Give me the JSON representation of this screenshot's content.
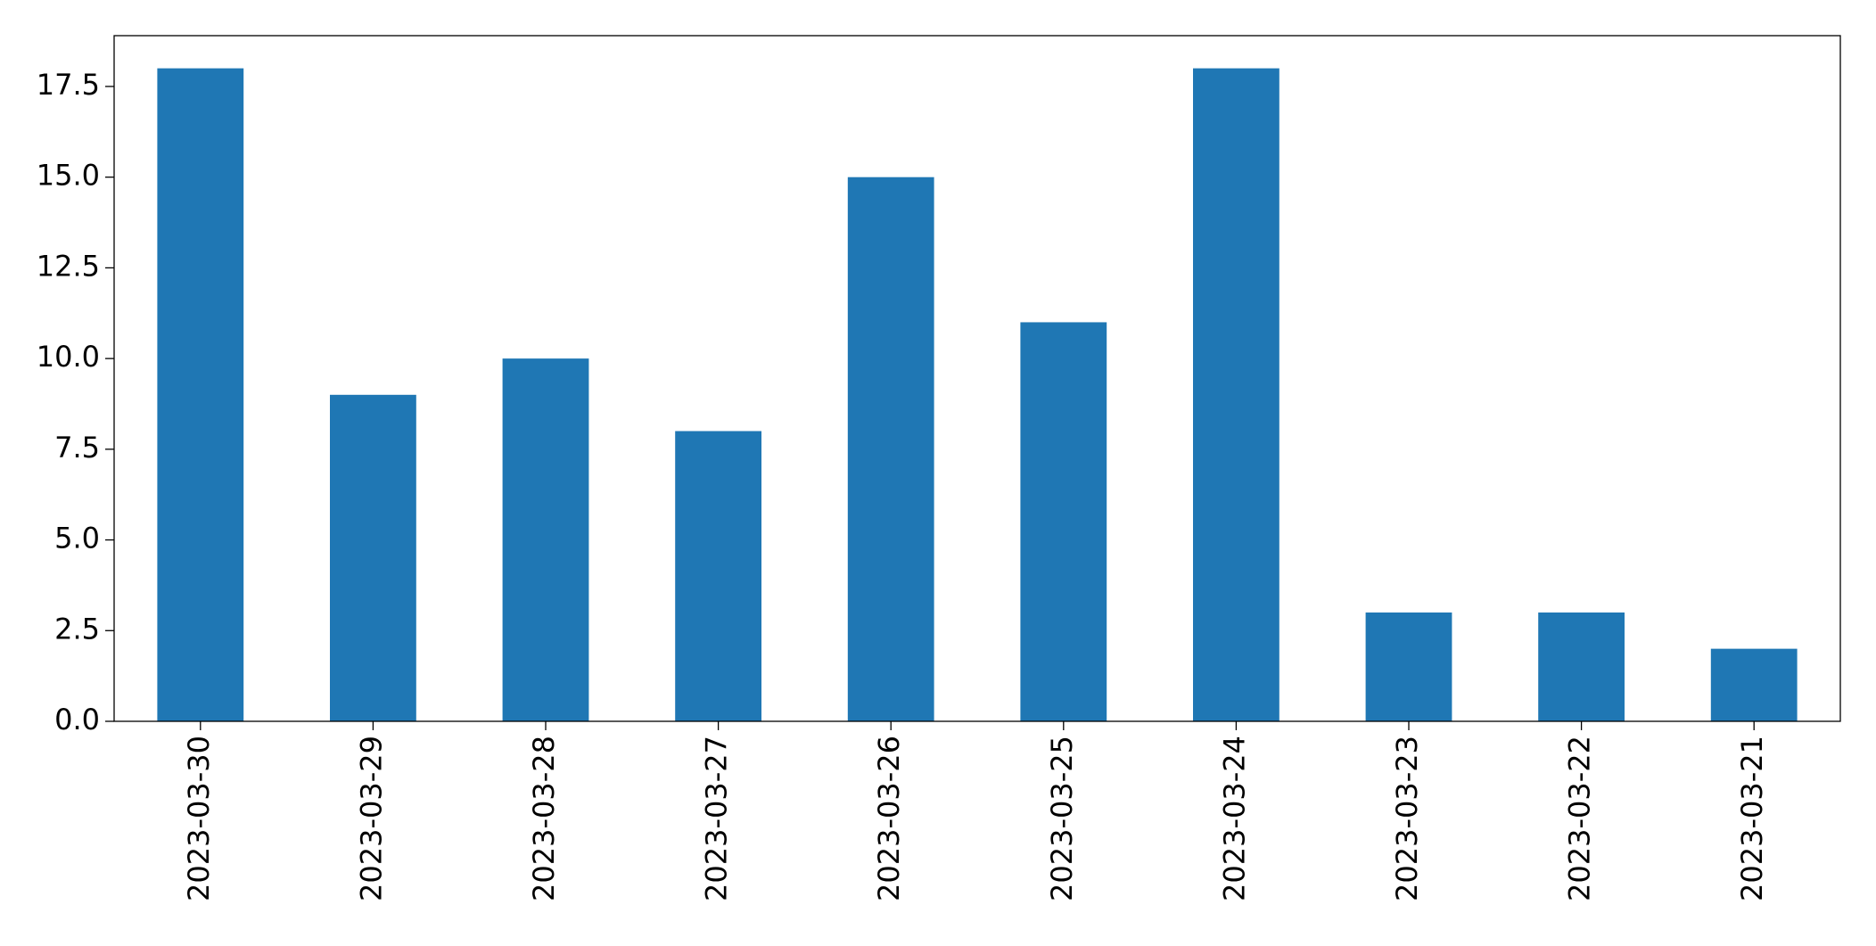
{
  "chart_data": {
    "type": "bar",
    "categories": [
      "2023-03-30",
      "2023-03-29",
      "2023-03-28",
      "2023-03-27",
      "2023-03-26",
      "2023-03-25",
      "2023-03-24",
      "2023-03-23",
      "2023-03-22",
      "2023-03-21"
    ],
    "values": [
      18,
      9,
      10,
      8,
      15,
      11,
      18,
      3,
      3,
      2
    ],
    "color": "#1f77b4",
    "ylim": [
      0,
      18.9
    ],
    "yticks": [
      {
        "value": 0,
        "label": "0.0"
      },
      2.5,
      {
        "value": 5,
        "label": "5.0"
      },
      7.5,
      {
        "value": 10,
        "label": "10.0"
      },
      12.5,
      {
        "value": 15,
        "label": "15.0"
      },
      17.5
    ],
    "grid": false
  }
}
